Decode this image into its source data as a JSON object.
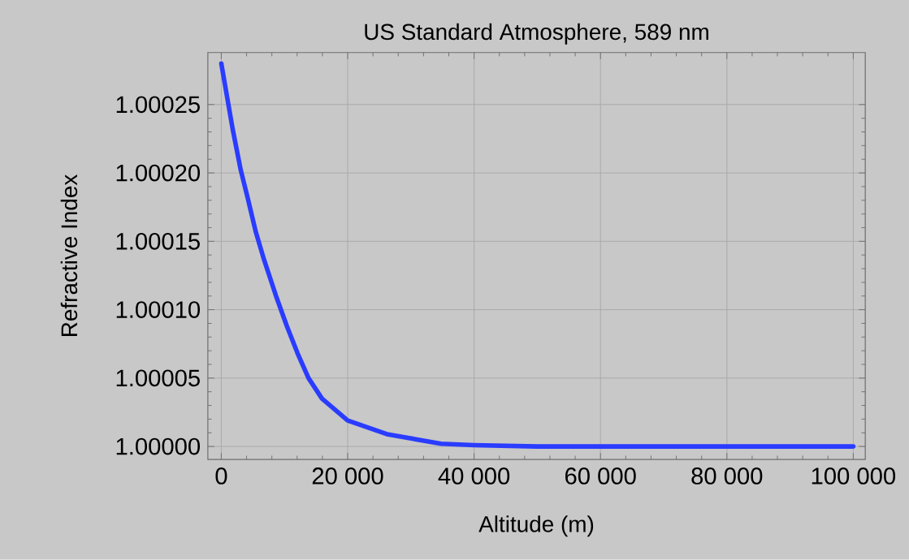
{
  "chart_data": {
    "type": "line",
    "title": "US Standard Atmosphere, 589 nm",
    "xlabel": "Altitude (m)",
    "ylabel": "Refractive Index",
    "x": [
      0,
      1800,
      3080,
      4160,
      5450,
      6730,
      8660,
      10370,
      12080,
      13800,
      15930,
      20000,
      26200,
      34770,
      40000,
      50000,
      60000,
      80000,
      100000
    ],
    "series": [
      {
        "color": "#2a3cff",
        "values": [
          1.00028,
          1.000232,
          1.000202,
          1.000182,
          1.000157,
          1.000137,
          1.00011,
          1.000088,
          1.000068,
          1.00005,
          1.000035,
          1.000019,
          1.000009,
          1.000002,
          1.000001,
          1.0,
          1.0,
          1.0,
          1.0
        ]
      }
    ],
    "xlim": [
      -2130,
      101900
    ],
    "ylim": [
      0.9999905,
      1.000288
    ],
    "xticks": [
      0,
      {
        "value": 20000,
        "label": "20 000"
      },
      {
        "value": 40000,
        "label": "40 000"
      },
      {
        "value": 60000,
        "label": "60 000"
      },
      {
        "value": 80000,
        "label": "80 000"
      },
      {
        "value": 100000,
        "label": "100 000"
      }
    ],
    "yticks": [
      {
        "value": 1.0,
        "label": "1.00000"
      },
      {
        "value": 1.00005,
        "label": "1.00005"
      },
      {
        "value": 1.0001,
        "label": "1.00010"
      },
      {
        "value": 1.00015,
        "label": "1.00015"
      },
      {
        "value": 1.0002,
        "label": "1.00020"
      },
      {
        "value": 1.00025,
        "label": "1.00025"
      }
    ],
    "grid": true,
    "marker": "none",
    "line_style": "solid"
  }
}
